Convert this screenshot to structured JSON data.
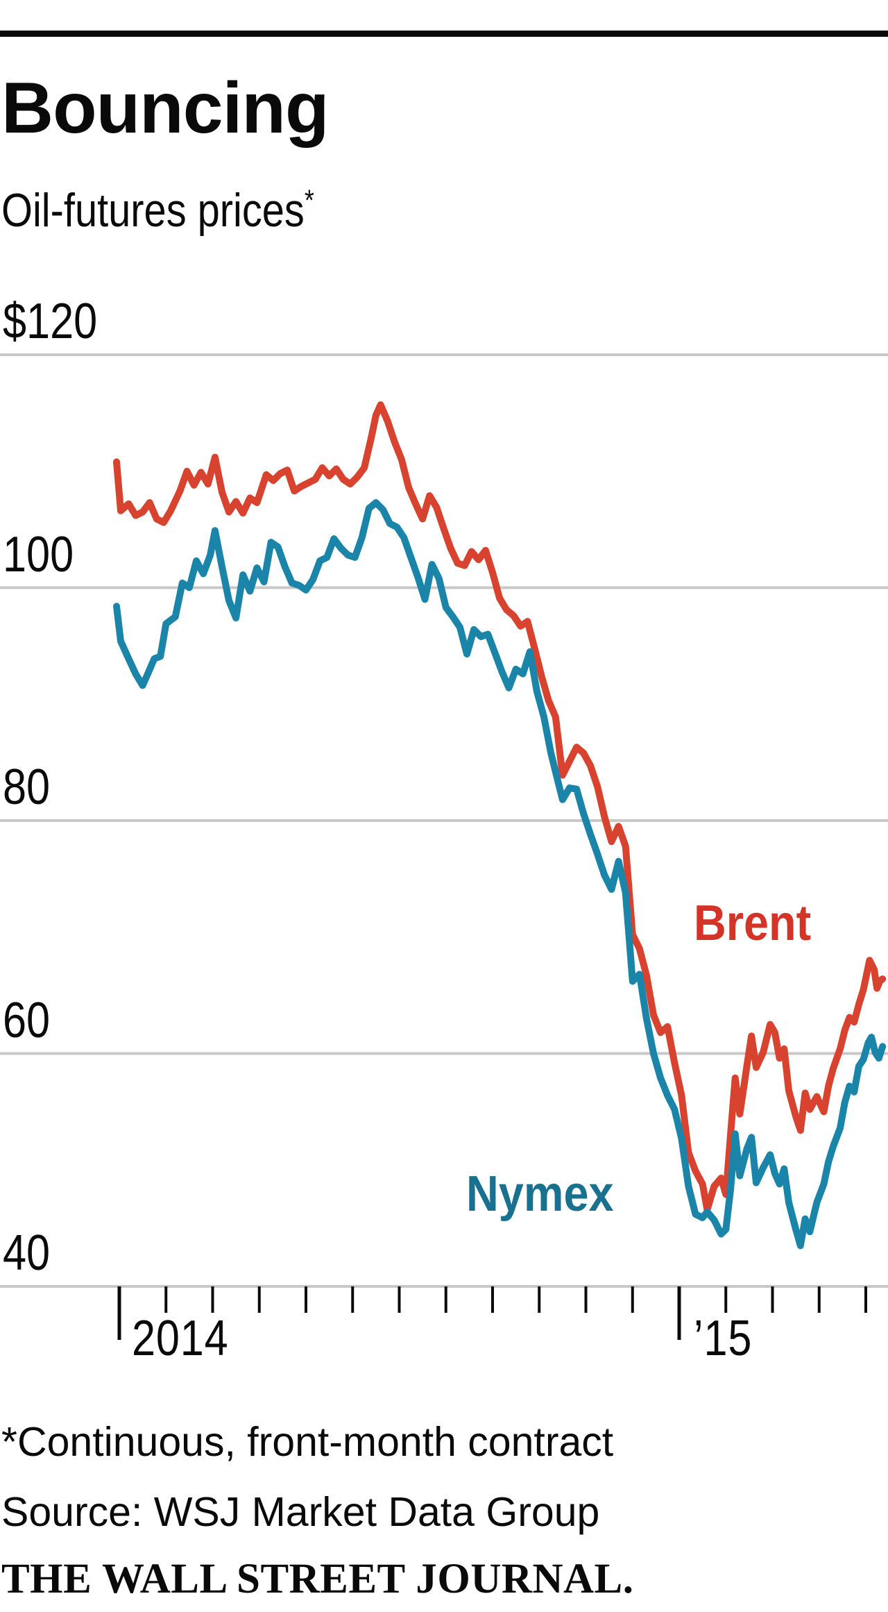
{
  "page": {
    "title": "Bouncing",
    "subtitle": "Oil-futures prices",
    "footnote_marker": "*"
  },
  "chart_data": {
    "type": "line",
    "title": "Bouncing",
    "subtitle": "Oil-futures prices*",
    "footnote": "*Continuous, front-month contract",
    "source": "Source: WSJ Market Data Group",
    "credit": "THE WALL STREET JOURNAL.",
    "grid_on": true,
    "grid_color": "#c8c8c8",
    "tick_color": "#0a0a0a",
    "ylim": [
      40,
      120
    ],
    "y_ticks": [
      {
        "value": 120,
        "label": "$120"
      },
      {
        "value": 100,
        "label": "100"
      },
      {
        "value": 80,
        "label": "80"
      },
      {
        "value": 60,
        "label": "60"
      },
      {
        "value": 40,
        "label": "40"
      }
    ],
    "x_major_ticks": [
      {
        "month": 0,
        "label": "2014"
      },
      {
        "month": 12,
        "label": "’15"
      }
    ],
    "x_minor_tick_months": [
      1,
      2,
      3,
      4,
      5,
      6,
      7,
      8,
      9,
      10,
      11,
      13,
      14,
      15,
      16
    ],
    "x_unit": "months since Jan 2014, data Dec 31 2013 through mid-May 2015",
    "series": [
      {
        "name": "Brent",
        "color": "#d7432e",
        "label_color": "#d43327",
        "points": [
          [
            -0.06,
            110.8
          ],
          [
            0.03,
            106.6
          ],
          [
            0.2,
            107.2
          ],
          [
            0.35,
            106.2
          ],
          [
            0.5,
            106.5
          ],
          [
            0.65,
            107.3
          ],
          [
            0.8,
            105.9
          ],
          [
            0.95,
            105.6
          ],
          [
            1.1,
            106.6
          ],
          [
            1.3,
            108.3
          ],
          [
            1.45,
            110.0
          ],
          [
            1.6,
            108.8
          ],
          [
            1.75,
            109.9
          ],
          [
            1.9,
            108.9
          ],
          [
            2.05,
            111.2
          ],
          [
            2.2,
            108.2
          ],
          [
            2.35,
            106.5
          ],
          [
            2.5,
            107.4
          ],
          [
            2.65,
            106.4
          ],
          [
            2.8,
            107.7
          ],
          [
            2.95,
            107.3
          ],
          [
            3.15,
            109.7
          ],
          [
            3.3,
            109.2
          ],
          [
            3.45,
            109.8
          ],
          [
            3.6,
            110.1
          ],
          [
            3.75,
            108.3
          ],
          [
            3.9,
            108.7
          ],
          [
            4.05,
            109.0
          ],
          [
            4.2,
            109.3
          ],
          [
            4.35,
            110.3
          ],
          [
            4.5,
            109.6
          ],
          [
            4.65,
            110.2
          ],
          [
            4.8,
            109.3
          ],
          [
            4.95,
            108.9
          ],
          [
            5.1,
            109.5
          ],
          [
            5.25,
            110.3
          ],
          [
            5.4,
            112.9
          ],
          [
            5.5,
            114.8
          ],
          [
            5.6,
            115.7
          ],
          [
            5.75,
            114.3
          ],
          [
            5.9,
            112.5
          ],
          [
            6.05,
            111.0
          ],
          [
            6.2,
            108.6
          ],
          [
            6.35,
            107.2
          ],
          [
            6.5,
            105.9
          ],
          [
            6.65,
            107.9
          ],
          [
            6.8,
            106.9
          ],
          [
            6.95,
            105.1
          ],
          [
            7.1,
            103.4
          ],
          [
            7.25,
            102.1
          ],
          [
            7.4,
            101.9
          ],
          [
            7.55,
            103.1
          ],
          [
            7.7,
            102.4
          ],
          [
            7.85,
            103.2
          ],
          [
            8.0,
            101.3
          ],
          [
            8.15,
            99.1
          ],
          [
            8.3,
            98.1
          ],
          [
            8.45,
            97.6
          ],
          [
            8.6,
            96.7
          ],
          [
            8.75,
            97.1
          ],
          [
            8.9,
            94.8
          ],
          [
            9.05,
            92.4
          ],
          [
            9.2,
            90.3
          ],
          [
            9.35,
            88.9
          ],
          [
            9.5,
            83.9
          ],
          [
            9.65,
            85.1
          ],
          [
            9.8,
            86.3
          ],
          [
            9.95,
            85.8
          ],
          [
            10.1,
            84.7
          ],
          [
            10.25,
            82.9
          ],
          [
            10.4,
            80.3
          ],
          [
            10.55,
            78.2
          ],
          [
            10.7,
            79.5
          ],
          [
            10.85,
            77.8
          ],
          [
            11.0,
            70.2
          ],
          [
            11.15,
            69.0
          ],
          [
            11.3,
            66.7
          ],
          [
            11.45,
            63.3
          ],
          [
            11.6,
            61.8
          ],
          [
            11.75,
            62.3
          ],
          [
            11.9,
            59.2
          ],
          [
            12.05,
            56.4
          ],
          [
            12.2,
            51.5
          ],
          [
            12.35,
            49.9
          ],
          [
            12.5,
            48.8
          ],
          [
            12.6,
            46.6
          ],
          [
            12.75,
            48.6
          ],
          [
            12.9,
            49.3
          ],
          [
            13.0,
            47.9
          ],
          [
            13.1,
            53.0
          ],
          [
            13.2,
            57.9
          ],
          [
            13.3,
            54.8
          ],
          [
            13.45,
            58.9
          ],
          [
            13.55,
            61.5
          ],
          [
            13.65,
            58.8
          ],
          [
            13.8,
            60.1
          ],
          [
            13.95,
            62.5
          ],
          [
            14.05,
            61.8
          ],
          [
            14.15,
            59.6
          ],
          [
            14.25,
            60.4
          ],
          [
            14.35,
            56.8
          ],
          [
            14.5,
            54.6
          ],
          [
            14.6,
            53.4
          ],
          [
            14.7,
            56.6
          ],
          [
            14.8,
            55.2
          ],
          [
            14.95,
            56.3
          ],
          [
            15.1,
            55.0
          ],
          [
            15.2,
            57.2
          ],
          [
            15.3,
            58.7
          ],
          [
            15.45,
            60.4
          ],
          [
            15.55,
            62.0
          ],
          [
            15.65,
            63.1
          ],
          [
            15.75,
            62.7
          ],
          [
            15.85,
            64.2
          ],
          [
            15.95,
            65.5
          ],
          [
            16.08,
            68.0
          ],
          [
            16.18,
            67.2
          ],
          [
            16.24,
            65.6
          ],
          [
            16.3,
            66.2
          ],
          [
            16.36,
            66.4
          ]
        ]
      },
      {
        "name": "Nymex",
        "color": "#1b85a9",
        "label_color": "#17718f",
        "points": [
          [
            -0.06,
            98.4
          ],
          [
            0.03,
            95.4
          ],
          [
            0.2,
            93.9
          ],
          [
            0.35,
            92.6
          ],
          [
            0.5,
            91.6
          ],
          [
            0.62,
            92.7
          ],
          [
            0.75,
            93.9
          ],
          [
            0.88,
            94.1
          ],
          [
            1.0,
            96.9
          ],
          [
            1.2,
            97.5
          ],
          [
            1.35,
            100.4
          ],
          [
            1.5,
            100.0
          ],
          [
            1.65,
            102.3
          ],
          [
            1.8,
            101.2
          ],
          [
            1.95,
            102.8
          ],
          [
            2.05,
            104.9
          ],
          [
            2.2,
            101.8
          ],
          [
            2.35,
            98.9
          ],
          [
            2.5,
            97.4
          ],
          [
            2.65,
            101.1
          ],
          [
            2.8,
            99.7
          ],
          [
            2.95,
            101.7
          ],
          [
            3.1,
            100.5
          ],
          [
            3.25,
            103.9
          ],
          [
            3.4,
            103.5
          ],
          [
            3.55,
            101.8
          ],
          [
            3.7,
            100.4
          ],
          [
            3.85,
            100.2
          ],
          [
            4.0,
            99.8
          ],
          [
            4.15,
            100.7
          ],
          [
            4.3,
            102.3
          ],
          [
            4.45,
            102.6
          ],
          [
            4.6,
            104.2
          ],
          [
            4.75,
            103.4
          ],
          [
            4.9,
            102.8
          ],
          [
            5.05,
            102.6
          ],
          [
            5.2,
            104.3
          ],
          [
            5.35,
            106.8
          ],
          [
            5.5,
            107.3
          ],
          [
            5.65,
            106.7
          ],
          [
            5.8,
            105.5
          ],
          [
            5.95,
            105.2
          ],
          [
            6.1,
            104.3
          ],
          [
            6.25,
            102.6
          ],
          [
            6.4,
            100.9
          ],
          [
            6.55,
            99.0
          ],
          [
            6.7,
            102.0
          ],
          [
            6.85,
            100.8
          ],
          [
            7.0,
            98.3
          ],
          [
            7.15,
            97.5
          ],
          [
            7.3,
            96.6
          ],
          [
            7.45,
            94.3
          ],
          [
            7.6,
            96.4
          ],
          [
            7.75,
            95.8
          ],
          [
            7.9,
            96.0
          ],
          [
            8.05,
            94.4
          ],
          [
            8.2,
            92.8
          ],
          [
            8.35,
            91.4
          ],
          [
            8.5,
            93.0
          ],
          [
            8.65,
            92.6
          ],
          [
            8.8,
            94.5
          ],
          [
            8.95,
            91.1
          ],
          [
            9.1,
            88.9
          ],
          [
            9.25,
            85.8
          ],
          [
            9.4,
            83.4
          ],
          [
            9.5,
            81.8
          ],
          [
            9.65,
            82.8
          ],
          [
            9.8,
            82.7
          ],
          [
            9.95,
            80.6
          ],
          [
            10.1,
            78.8
          ],
          [
            10.25,
            77.1
          ],
          [
            10.4,
            75.3
          ],
          [
            10.55,
            74.1
          ],
          [
            10.7,
            76.5
          ],
          [
            10.85,
            73.8
          ],
          [
            11.0,
            66.2
          ],
          [
            11.15,
            66.8
          ],
          [
            11.3,
            63.0
          ],
          [
            11.45,
            60.0
          ],
          [
            11.6,
            57.9
          ],
          [
            11.75,
            56.4
          ],
          [
            11.9,
            55.2
          ],
          [
            12.05,
            52.7
          ],
          [
            12.2,
            48.6
          ],
          [
            12.35,
            46.2
          ],
          [
            12.5,
            45.9
          ],
          [
            12.6,
            46.4
          ],
          [
            12.75,
            45.7
          ],
          [
            12.9,
            44.5
          ],
          [
            13.0,
            44.9
          ],
          [
            13.1,
            48.3
          ],
          [
            13.2,
            53.1
          ],
          [
            13.3,
            49.5
          ],
          [
            13.45,
            51.8
          ],
          [
            13.55,
            52.8
          ],
          [
            13.65,
            48.9
          ],
          [
            13.8,
            50.2
          ],
          [
            13.95,
            51.3
          ],
          [
            14.05,
            49.7
          ],
          [
            14.15,
            48.8
          ],
          [
            14.25,
            50.1
          ],
          [
            14.35,
            47.2
          ],
          [
            14.5,
            44.9
          ],
          [
            14.6,
            43.5
          ],
          [
            14.7,
            45.8
          ],
          [
            14.8,
            44.7
          ],
          [
            14.95,
            47.2
          ],
          [
            15.1,
            48.8
          ],
          [
            15.2,
            50.7
          ],
          [
            15.3,
            52.0
          ],
          [
            15.45,
            53.6
          ],
          [
            15.55,
            55.8
          ],
          [
            15.65,
            57.2
          ],
          [
            15.75,
            56.7
          ],
          [
            15.85,
            58.9
          ],
          [
            15.95,
            59.5
          ],
          [
            16.05,
            60.9
          ],
          [
            16.12,
            61.4
          ],
          [
            16.2,
            60.1
          ],
          [
            16.28,
            59.6
          ],
          [
            16.36,
            60.6
          ]
        ]
      }
    ]
  }
}
